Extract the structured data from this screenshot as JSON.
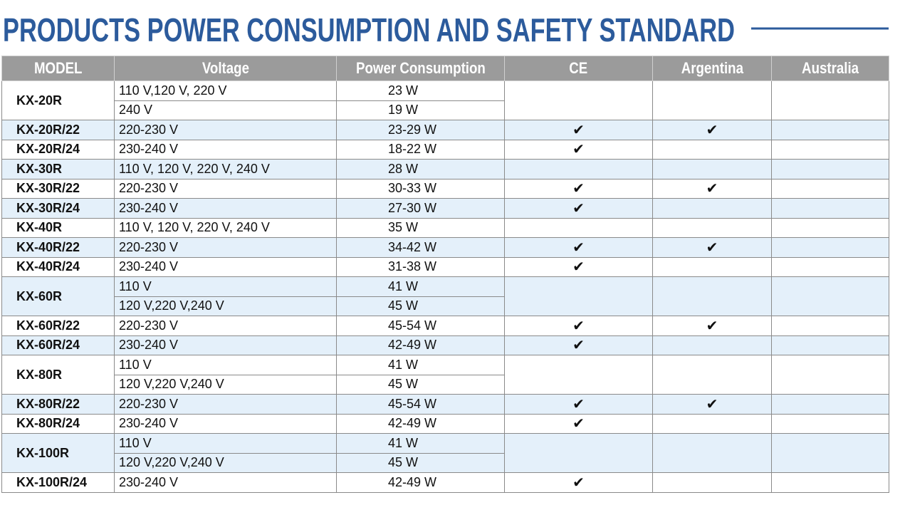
{
  "header": {
    "title": "PRODUCTS POWER CONSUMPTION AND SAFETY STANDARD"
  },
  "table": {
    "columns": [
      "MODEL",
      "Voltage",
      "Power Consumption",
      "CE",
      "Argentina",
      "Australia"
    ],
    "models": [
      {
        "model": "KX-20R",
        "rows": [
          {
            "voltage": "110 V,120 V, 220 V",
            "power": "23 W"
          },
          {
            "voltage": "240 V",
            "power": "19 W"
          }
        ]
      },
      {
        "model": "KX-20R/22",
        "rows": [
          {
            "voltage": "220-230 V",
            "power": "23-29 W"
          }
        ],
        "ce": "✔",
        "argentina": "✔"
      },
      {
        "model": "KX-20R/24",
        "rows": [
          {
            "voltage": "230-240 V",
            "power": "18-22 W"
          }
        ],
        "ce": "✔"
      },
      {
        "model": "KX-30R",
        "rows": [
          {
            "voltage": "110 V, 120 V, 220 V, 240 V",
            "power": "28 W"
          }
        ]
      },
      {
        "model": "KX-30R/22",
        "rows": [
          {
            "voltage": "220-230 V",
            "power": "30-33 W"
          }
        ],
        "ce": "✔",
        "argentina": "✔"
      },
      {
        "model": "KX-30R/24",
        "rows": [
          {
            "voltage": "230-240 V",
            "power": "27-30 W"
          }
        ],
        "ce": "✔"
      },
      {
        "model": "KX-40R",
        "rows": [
          {
            "voltage": "110 V, 120 V, 220 V, 240 V",
            "power": "35 W"
          }
        ]
      },
      {
        "model": "KX-40R/22",
        "rows": [
          {
            "voltage": "220-230 V",
            "power": "34-42 W"
          }
        ],
        "ce": "✔",
        "argentina": "✔"
      },
      {
        "model": "KX-40R/24",
        "rows": [
          {
            "voltage": "230-240 V",
            "power": "31-38 W"
          }
        ],
        "ce": "✔"
      },
      {
        "model": "KX-60R",
        "rows": [
          {
            "voltage": "110 V",
            "power": "41 W"
          },
          {
            "voltage": "120 V,220 V,240 V",
            "power": "45 W"
          }
        ]
      },
      {
        "model": "KX-60R/22",
        "rows": [
          {
            "voltage": "220-230 V",
            "power": "45-54 W"
          }
        ],
        "ce": "✔",
        "argentina": "✔"
      },
      {
        "model": "KX-60R/24",
        "rows": [
          {
            "voltage": "230-240 V",
            "power": "42-49 W"
          }
        ],
        "ce": "✔"
      },
      {
        "model": "KX-80R",
        "rows": [
          {
            "voltage": "110 V",
            "power": "41 W"
          },
          {
            "voltage": "120 V,220 V,240 V",
            "power": "45 W"
          }
        ]
      },
      {
        "model": "KX-80R/22",
        "rows": [
          {
            "voltage": "220-230 V",
            "power": "45-54 W"
          }
        ],
        "ce": "✔",
        "argentina": "✔"
      },
      {
        "model": "KX-80R/24",
        "rows": [
          {
            "voltage": "230-240 V",
            "power": "42-49 W"
          }
        ],
        "ce": "✔"
      },
      {
        "model": "KX-100R",
        "rows": [
          {
            "voltage": "110 V",
            "power": "41 W"
          },
          {
            "voltage": "120 V,220 V,240 V",
            "power": "45 W"
          }
        ]
      },
      {
        "model": "KX-100R/24",
        "rows": [
          {
            "voltage": "230-240 V",
            "power": "42-49 W"
          }
        ],
        "ce": "✔"
      }
    ]
  }
}
